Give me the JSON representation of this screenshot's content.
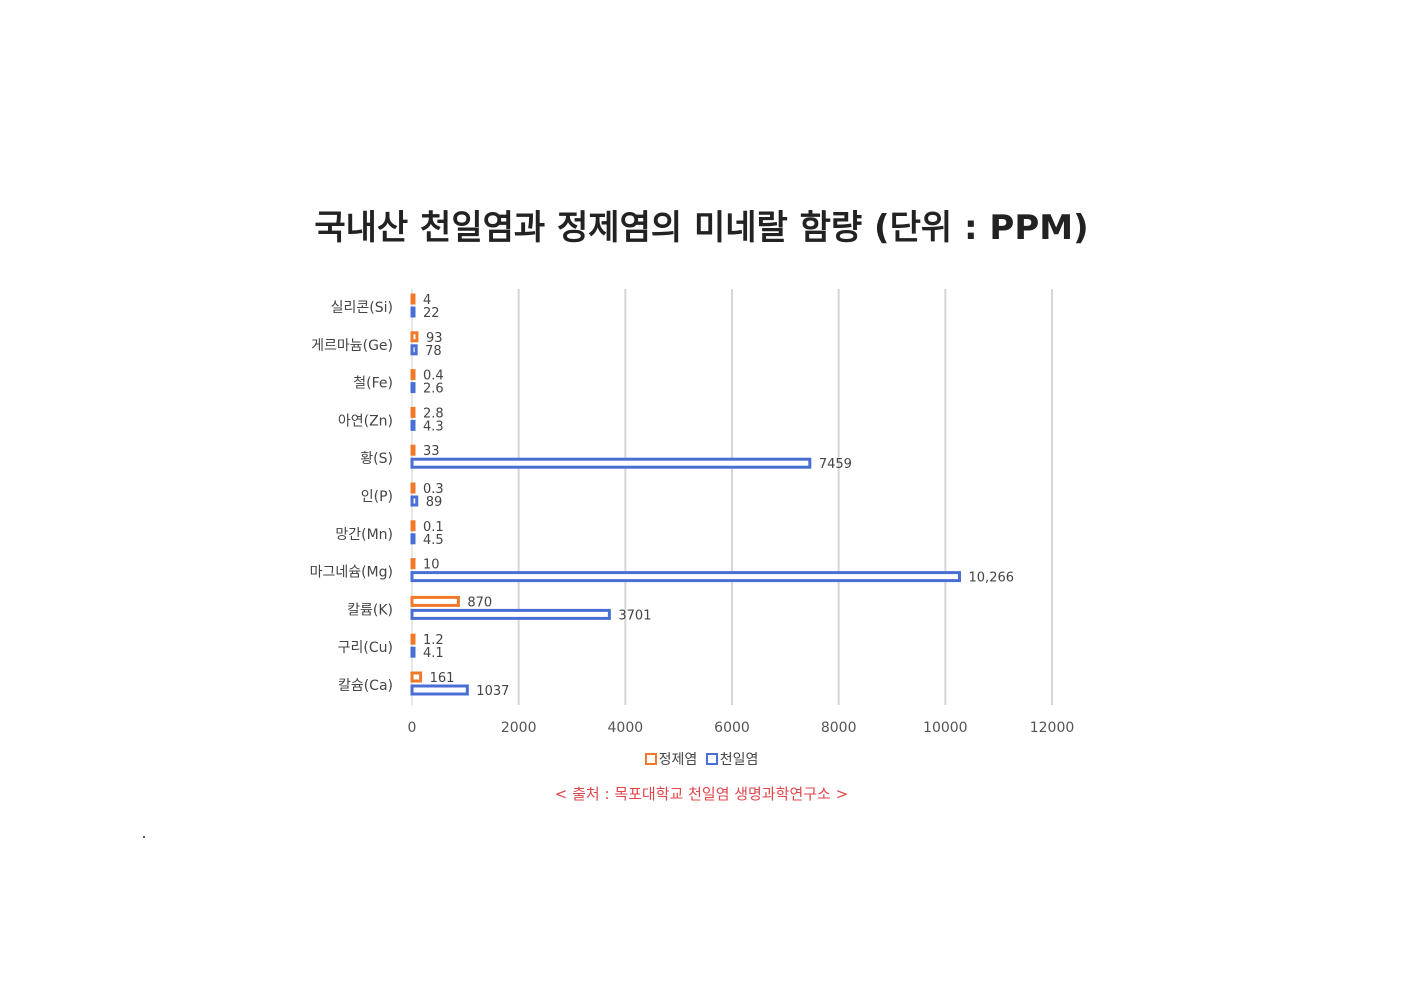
{
  "chart_data": {
    "type": "bar",
    "orientation": "horizontal",
    "title": "국내산 천일염과 정제염의 미네랄 함량 (단위 : PPM)",
    "categories": [
      "실리콘(Si)",
      "게르마늄(Ge)",
      "철(Fe)",
      "아연(Zn)",
      "황(S)",
      "인(P)",
      "망간(Mn)",
      "마그네슘(Mg)",
      "칼륨(K)",
      "구리(Cu)",
      "칼슘(Ca)"
    ],
    "series": [
      {
        "name": "정제염",
        "color": "#f07a2a",
        "values": [
          4,
          93,
          0.4,
          2.8,
          33,
          0.3,
          0.1,
          10,
          870,
          1.2,
          161
        ],
        "labels": [
          "4",
          "93",
          "0.4",
          "2.8",
          "33",
          "0.3",
          "0.1",
          "10",
          "870",
          "1.2",
          "161"
        ]
      },
      {
        "name": "천일염",
        "color": "#4a6fd4",
        "values": [
          22,
          78,
          2.6,
          4.3,
          7459,
          89,
          4.5,
          10266,
          3701,
          4.1,
          1037
        ],
        "labels": [
          "22",
          "78",
          "2.6",
          "4.3",
          "7459",
          "89",
          "4.5",
          "10,266",
          "3701",
          "4.1",
          "1037"
        ]
      }
    ],
    "x_ticks": [
      "0",
      "2000",
      "4000",
      "6000",
      "8000",
      "10000",
      "12000"
    ],
    "xlim": [
      0,
      12000
    ],
    "grid": true,
    "legend_position": "bottom"
  },
  "source_note": "< 출처 : 목포대학교 천일염 생명과학연구소 >"
}
